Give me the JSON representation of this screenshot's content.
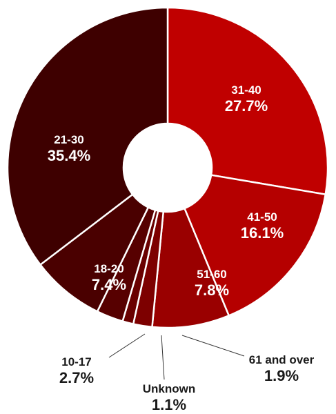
{
  "chart_data": {
    "type": "pie",
    "variant": "donut",
    "title": "",
    "categories": [
      "31-40",
      "41-50",
      "51-60",
      "61 and over",
      "Unknown",
      "10-17",
      "18-20",
      "21-30"
    ],
    "values": [
      27.7,
      16.1,
      7.8,
      1.9,
      1.1,
      2.7,
      7.4,
      35.4
    ],
    "value_labels": [
      "27.7%",
      "16.1%",
      "7.8%",
      "1.9%",
      "1.1%",
      "2.7%",
      "7.4%",
      "35.4%"
    ],
    "colors": [
      "#c00000",
      "#b50000",
      "#9a0000",
      "#7d0000",
      "#6a0000",
      "#570000",
      "#4a0000",
      "#3e0000"
    ],
    "label_color_inside": "#ffffff",
    "label_color_outside": "#1a1a1a",
    "slice_border_color": "#ffffff",
    "start_angle": "12 o'clock",
    "direction": "clockwise"
  }
}
